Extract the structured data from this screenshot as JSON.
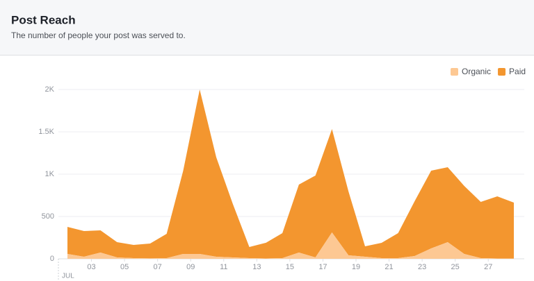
{
  "header": {
    "title": "Post Reach",
    "subtitle": "The number of people your post was served to."
  },
  "chart_data": {
    "type": "stacked-area",
    "x": [
      1,
      2,
      3,
      4,
      5,
      6,
      7,
      8,
      9,
      10,
      11,
      12,
      13,
      14,
      15,
      16,
      17,
      18,
      19,
      20,
      21,
      22,
      23,
      24,
      25,
      26,
      27,
      28
    ],
    "xlim": [
      0.45,
      29.1
    ],
    "xticks": [
      {
        "value": 3,
        "label": "03"
      },
      {
        "value": 5,
        "label": "05"
      },
      {
        "value": 7,
        "label": "07"
      },
      {
        "value": 9,
        "label": "09"
      },
      11,
      13,
      15,
      17,
      19,
      21,
      23,
      25,
      27
    ],
    "x_period_label": "JUL",
    "ylim": [
      0,
      2000
    ],
    "yticks": [
      0,
      500,
      {
        "value": 1000,
        "label": "1K"
      },
      {
        "value": 1500,
        "label": "1.5K"
      },
      {
        "value": 2000,
        "label": "2K"
      }
    ],
    "grid": true,
    "legend": "top-right",
    "series": [
      {
        "name": "Organic",
        "color": "#fdc893",
        "values": [
          57,
          25,
          74,
          16,
          8,
          5,
          8,
          57,
          57,
          25,
          16,
          8,
          4,
          8,
          74,
          16,
          311,
          41,
          25,
          8,
          8,
          33,
          123,
          197,
          57,
          8,
          4,
          4
        ]
      },
      {
        "name": "Paid",
        "color": "#f3962f",
        "values": [
          320,
          303,
          262,
          181,
          156,
          175,
          287,
          983,
          1943,
          1175,
          634,
          131,
          185,
          295,
          803,
          968,
          1222,
          754,
          123,
          181,
          295,
          647,
          918,
          885,
          804,
          664,
          734,
          660
        ]
      }
    ]
  }
}
